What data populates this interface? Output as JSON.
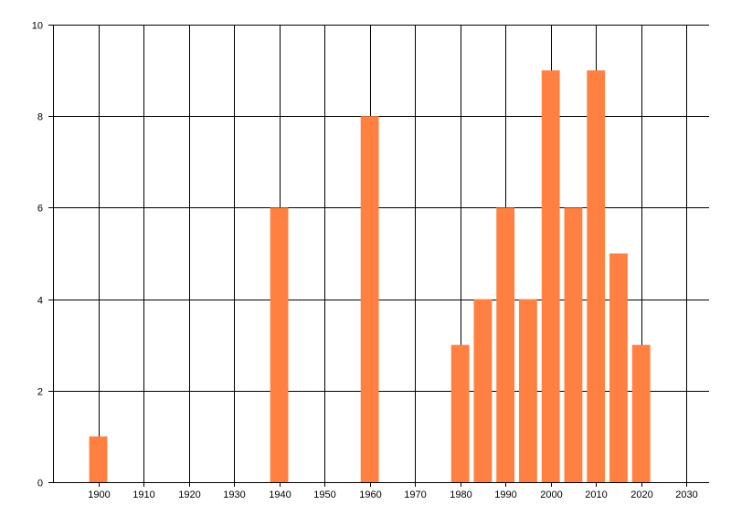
{
  "chart_data": {
    "type": "bar",
    "title": "",
    "xlabel": "",
    "ylabel": "",
    "x": [
      1900,
      1940,
      1960,
      1980,
      1985,
      1990,
      1995,
      2000,
      2005,
      2010,
      2015,
      2020
    ],
    "values": [
      1,
      6,
      8,
      3,
      4,
      6,
      4,
      9,
      6,
      9,
      5,
      3
    ],
    "xlim": [
      1890,
      2035
    ],
    "ylim": [
      0,
      10
    ],
    "xticks": [
      1900,
      1910,
      1920,
      1930,
      1940,
      1950,
      1960,
      1970,
      1980,
      1990,
      2000,
      2010,
      2020,
      2030
    ],
    "yticks": [
      0,
      2,
      4,
      6,
      8,
      10
    ],
    "bar_width": 4,
    "grid": true,
    "legend": "none",
    "bar_color": "#FF8040"
  }
}
